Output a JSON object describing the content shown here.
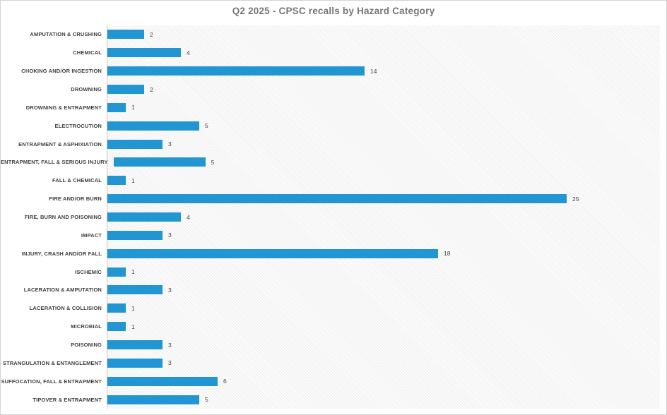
{
  "title": "Q2 2025 - CPSC recalls by Hazard Category",
  "colors": {
    "bar": "#2196d3",
    "title": "#767676",
    "category_label": "#3f3f3f",
    "value_label": "#444444",
    "axis_line": "#c6c6c6",
    "page_border": "#d4d4d4"
  },
  "chart_data": {
    "type": "bar",
    "orientation": "horizontal",
    "title": "Q2 2025 - CPSC recalls by Hazard Category",
    "xlabel": "",
    "ylabel": "",
    "xlim": [
      0,
      30
    ],
    "grid": false,
    "legend": false,
    "data_labels": true,
    "plot_background": "light diagonal hatch",
    "categories": [
      "AMPUTATION & CRUSHING",
      "CHEMICAL",
      "CHOKING AND/OR INGESTION",
      "DROWNING",
      "DROWNING & ENTRAPMENT",
      "ELECTROCUTION",
      "ENTRAPMENT & ASPHIXIATION",
      "ENTRAPMENT, FALL & SERIOUS INJURY",
      "FALL & CHEMICAL",
      "FIRE AND/OR BURN",
      "FIRE, BURN AND POISONING",
      "IMPACT",
      "INJURY, CRASH AND/OR FALL",
      "ISCHEMIC",
      "LACERATION & AMPUTATION",
      "LACERATION & COLLISION",
      "MICROBIAL",
      "POISONING",
      "STRANGULATION & ENTANGLEMENT",
      "SUFFOCATION, FALL & ENTRAPMENT",
      "TIPOVER & ENTRAPMENT"
    ],
    "values": [
      2,
      4,
      14,
      2,
      1,
      5,
      3,
      5,
      1,
      25,
      4,
      3,
      18,
      1,
      3,
      1,
      1,
      3,
      3,
      6,
      5
    ]
  }
}
